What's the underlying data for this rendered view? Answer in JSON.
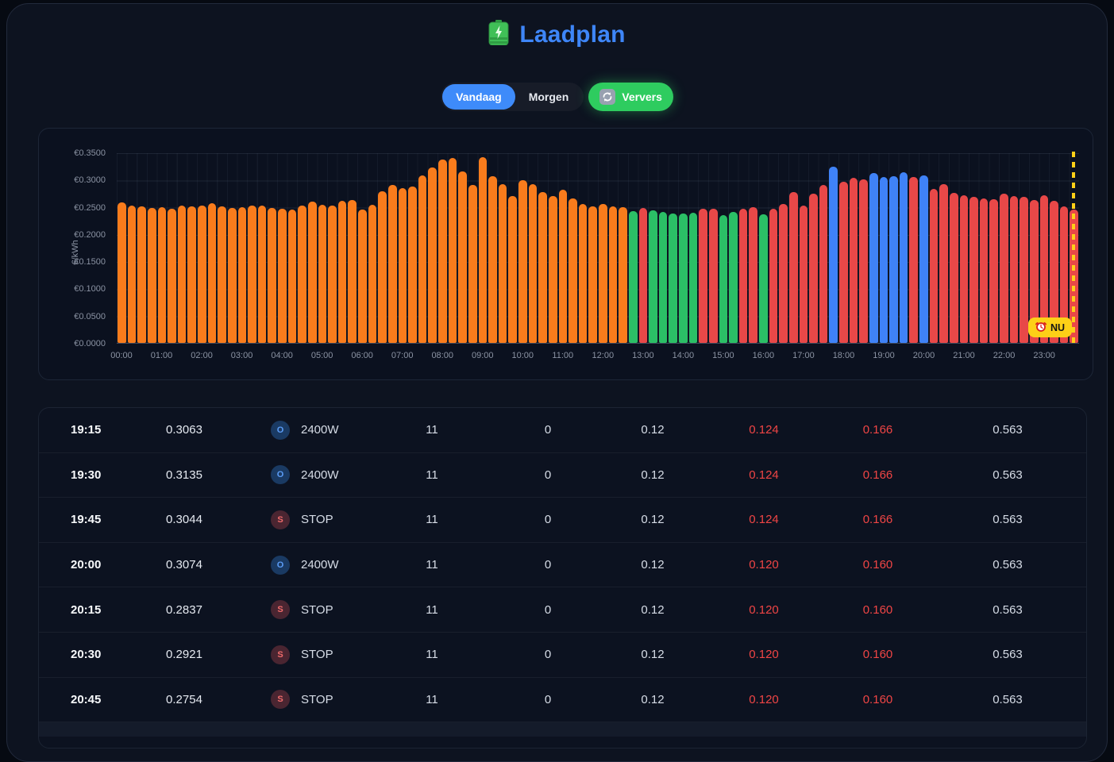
{
  "title": {
    "text": "Laadplan",
    "icon": "battery-icon"
  },
  "tabs": {
    "vandaag": "Vandaag",
    "morgen": "Morgen",
    "ververs": "Ververs"
  },
  "colors": {
    "accent_blue": "#3e86f8",
    "tab_blue": "#3e8bfa",
    "refresh_green": "#2ecc5f",
    "bar_orange": "#f97c1c",
    "bar_green": "#2bbf66",
    "bar_red": "#e84848",
    "bar_blue": "#3f82f7",
    "now_yellow": "#fdd017",
    "table_red": "#f04545"
  },
  "chart_data": {
    "type": "bar",
    "title": "",
    "xlabel": "",
    "ylabel": "€/kWh",
    "ylim": [
      0,
      0.35
    ],
    "grid": true,
    "y_tick_labels": [
      "€0.3500",
      "€0.3000",
      "€0.2500",
      "€0.2000",
      "€0.1500",
      "€0.1000",
      "€0.0500",
      "€0.0000"
    ],
    "x_hour_labels": [
      "00:00",
      "01:00",
      "02:00",
      "03:00",
      "04:00",
      "05:00",
      "06:00",
      "07:00",
      "08:00",
      "09:00",
      "10:00",
      "11:00",
      "12:00",
      "13:00",
      "14:00",
      "15:00",
      "16:00",
      "17:00",
      "18:00",
      "19:00",
      "20:00",
      "21:00",
      "22:00",
      "23:00"
    ],
    "now_marker": {
      "label": "NU",
      "time": "23:45",
      "icon": "alarm-clock-icon"
    },
    "legend_note": "orange=earlier today, green=cheap slot, red=expensive slot, blue=planned charge slot",
    "bars": [
      {
        "t": "00:00",
        "v": 0.258,
        "c": "orange"
      },
      {
        "t": "00:15",
        "v": 0.2523,
        "c": "orange"
      },
      {
        "t": "00:30",
        "v": 0.2509,
        "c": "orange"
      },
      {
        "t": "00:45",
        "v": 0.2484,
        "c": "orange"
      },
      {
        "t": "01:00",
        "v": 0.2495,
        "c": "orange"
      },
      {
        "t": "01:15",
        "v": 0.246,
        "c": "orange"
      },
      {
        "t": "01:30",
        "v": 0.2523,
        "c": "orange"
      },
      {
        "t": "01:45",
        "v": 0.2509,
        "c": "orange"
      },
      {
        "t": "02:00",
        "v": 0.2523,
        "c": "orange"
      },
      {
        "t": "02:15",
        "v": 0.2572,
        "c": "orange"
      },
      {
        "t": "02:30",
        "v": 0.2509,
        "c": "orange"
      },
      {
        "t": "02:45",
        "v": 0.248,
        "c": "orange"
      },
      {
        "t": "03:00",
        "v": 0.2495,
        "c": "orange"
      },
      {
        "t": "03:15",
        "v": 0.2523,
        "c": "orange"
      },
      {
        "t": "03:30",
        "v": 0.2523,
        "c": "orange"
      },
      {
        "t": "03:45",
        "v": 0.2485,
        "c": "orange"
      },
      {
        "t": "04:00",
        "v": 0.2467,
        "c": "orange"
      },
      {
        "t": "04:15",
        "v": 0.2455,
        "c": "orange"
      },
      {
        "t": "04:30",
        "v": 0.2528,
        "c": "orange"
      },
      {
        "t": "04:45",
        "v": 0.26,
        "c": "orange"
      },
      {
        "t": "05:00",
        "v": 0.2543,
        "c": "orange"
      },
      {
        "t": "05:15",
        "v": 0.2528,
        "c": "orange"
      },
      {
        "t": "05:30",
        "v": 0.2616,
        "c": "orange"
      },
      {
        "t": "05:45",
        "v": 0.2626,
        "c": "orange"
      },
      {
        "t": "06:00",
        "v": 0.245,
        "c": "orange"
      },
      {
        "t": "06:15",
        "v": 0.2535,
        "c": "orange"
      },
      {
        "t": "06:30",
        "v": 0.278,
        "c": "orange"
      },
      {
        "t": "06:45",
        "v": 0.2907,
        "c": "orange"
      },
      {
        "t": "07:00",
        "v": 0.285,
        "c": "orange"
      },
      {
        "t": "07:15",
        "v": 0.2873,
        "c": "orange"
      },
      {
        "t": "07:30",
        "v": 0.3077,
        "c": "orange"
      },
      {
        "t": "07:45",
        "v": 0.3228,
        "c": "orange"
      },
      {
        "t": "08:00",
        "v": 0.3374,
        "c": "orange"
      },
      {
        "t": "08:15",
        "v": 0.3394,
        "c": "orange"
      },
      {
        "t": "08:30",
        "v": 0.3155,
        "c": "orange"
      },
      {
        "t": "08:45",
        "v": 0.2898,
        "c": "orange"
      },
      {
        "t": "09:00",
        "v": 0.3417,
        "c": "orange"
      },
      {
        "t": "09:15",
        "v": 0.3067,
        "c": "orange"
      },
      {
        "t": "09:30",
        "v": 0.2922,
        "c": "orange"
      },
      {
        "t": "09:45",
        "v": 0.2703,
        "c": "orange"
      },
      {
        "t": "10:00",
        "v": 0.2985,
        "c": "orange"
      },
      {
        "t": "10:15",
        "v": 0.2922,
        "c": "orange"
      },
      {
        "t": "10:30",
        "v": 0.2776,
        "c": "orange"
      },
      {
        "t": "10:45",
        "v": 0.27,
        "c": "orange"
      },
      {
        "t": "11:00",
        "v": 0.281,
        "c": "orange"
      },
      {
        "t": "11:15",
        "v": 0.2655,
        "c": "orange"
      },
      {
        "t": "11:30",
        "v": 0.256,
        "c": "orange"
      },
      {
        "t": "11:45",
        "v": 0.251,
        "c": "orange"
      },
      {
        "t": "12:00",
        "v": 0.2557,
        "c": "orange"
      },
      {
        "t": "12:15",
        "v": 0.2509,
        "c": "orange"
      },
      {
        "t": "12:30",
        "v": 0.25,
        "c": "orange"
      },
      {
        "t": "12:45",
        "v": 0.242,
        "c": "green"
      },
      {
        "t": "13:00",
        "v": 0.2484,
        "c": "red"
      },
      {
        "t": "13:15",
        "v": 0.2436,
        "c": "green"
      },
      {
        "t": "13:30",
        "v": 0.24,
        "c": "green"
      },
      {
        "t": "13:45",
        "v": 0.2377,
        "c": "green"
      },
      {
        "t": "14:00",
        "v": 0.2377,
        "c": "green"
      },
      {
        "t": "14:15",
        "v": 0.2396,
        "c": "green"
      },
      {
        "t": "14:30",
        "v": 0.246,
        "c": "red"
      },
      {
        "t": "14:45",
        "v": 0.247,
        "c": "red"
      },
      {
        "t": "15:00",
        "v": 0.2353,
        "c": "green"
      },
      {
        "t": "15:15",
        "v": 0.241,
        "c": "green"
      },
      {
        "t": "15:30",
        "v": 0.247,
        "c": "red"
      },
      {
        "t": "15:45",
        "v": 0.25,
        "c": "red"
      },
      {
        "t": "16:00",
        "v": 0.236,
        "c": "green"
      },
      {
        "t": "16:15",
        "v": 0.246,
        "c": "red"
      },
      {
        "t": "16:30",
        "v": 0.2557,
        "c": "red"
      },
      {
        "t": "16:45",
        "v": 0.2776,
        "c": "red"
      },
      {
        "t": "17:00",
        "v": 0.2518,
        "c": "red"
      },
      {
        "t": "17:15",
        "v": 0.274,
        "c": "red"
      },
      {
        "t": "17:30",
        "v": 0.2906,
        "c": "red"
      },
      {
        "t": "17:45",
        "v": 0.3238,
        "c": "blue"
      },
      {
        "t": "18:00",
        "v": 0.2956,
        "c": "red"
      },
      {
        "t": "18:15",
        "v": 0.3029,
        "c": "red"
      },
      {
        "t": "18:30",
        "v": 0.3004,
        "c": "red"
      },
      {
        "t": "18:45",
        "v": 0.312,
        "c": "blue"
      },
      {
        "t": "19:00",
        "v": 0.3047,
        "c": "blue"
      },
      {
        "t": "19:15",
        "v": 0.3063,
        "c": "blue"
      },
      {
        "t": "19:30",
        "v": 0.3135,
        "c": "blue"
      },
      {
        "t": "19:45",
        "v": 0.3044,
        "c": "red"
      },
      {
        "t": "20:00",
        "v": 0.3074,
        "c": "blue"
      },
      {
        "t": "20:15",
        "v": 0.2837,
        "c": "red"
      },
      {
        "t": "20:30",
        "v": 0.2921,
        "c": "red"
      },
      {
        "t": "20:45",
        "v": 0.2754,
        "c": "red"
      },
      {
        "t": "21:00",
        "v": 0.271,
        "c": "red"
      },
      {
        "t": "21:15",
        "v": 0.268,
        "c": "red"
      },
      {
        "t": "21:30",
        "v": 0.2655,
        "c": "red"
      },
      {
        "t": "21:45",
        "v": 0.2645,
        "c": "red"
      },
      {
        "t": "22:00",
        "v": 0.2737,
        "c": "red"
      },
      {
        "t": "22:15",
        "v": 0.27,
        "c": "red"
      },
      {
        "t": "22:30",
        "v": 0.2688,
        "c": "red"
      },
      {
        "t": "22:45",
        "v": 0.263,
        "c": "red"
      },
      {
        "t": "23:00",
        "v": 0.271,
        "c": "red"
      },
      {
        "t": "23:15",
        "v": 0.2606,
        "c": "red"
      },
      {
        "t": "23:30",
        "v": 0.2509,
        "c": "red"
      },
      {
        "t": "23:45",
        "v": 0.245,
        "c": "red"
      }
    ]
  },
  "table": {
    "rows": [
      {
        "time": "19:15",
        "price": "0.3063",
        "badge": "O",
        "action": "2400W",
        "v1": "11",
        "v2": "0",
        "v3": "0.12",
        "r1": "0.124",
        "r2": "0.166",
        "v4": "0.563"
      },
      {
        "time": "19:30",
        "price": "0.3135",
        "badge": "O",
        "action": "2400W",
        "v1": "11",
        "v2": "0",
        "v3": "0.12",
        "r1": "0.124",
        "r2": "0.166",
        "v4": "0.563"
      },
      {
        "time": "19:45",
        "price": "0.3044",
        "badge": "S",
        "action": "STOP",
        "v1": "11",
        "v2": "0",
        "v3": "0.12",
        "r1": "0.124",
        "r2": "0.166",
        "v4": "0.563"
      },
      {
        "time": "20:00",
        "price": "0.3074",
        "badge": "O",
        "action": "2400W",
        "v1": "11",
        "v2": "0",
        "v3": "0.12",
        "r1": "0.120",
        "r2": "0.160",
        "v4": "0.563"
      },
      {
        "time": "20:15",
        "price": "0.2837",
        "badge": "S",
        "action": "STOP",
        "v1": "11",
        "v2": "0",
        "v3": "0.12",
        "r1": "0.120",
        "r2": "0.160",
        "v4": "0.563"
      },
      {
        "time": "20:30",
        "price": "0.2921",
        "badge": "S",
        "action": "STOP",
        "v1": "11",
        "v2": "0",
        "v3": "0.12",
        "r1": "0.120",
        "r2": "0.160",
        "v4": "0.563"
      },
      {
        "time": "20:45",
        "price": "0.2754",
        "badge": "S",
        "action": "STOP",
        "v1": "11",
        "v2": "0",
        "v3": "0.12",
        "r1": "0.120",
        "r2": "0.160",
        "v4": "0.563"
      }
    ]
  }
}
